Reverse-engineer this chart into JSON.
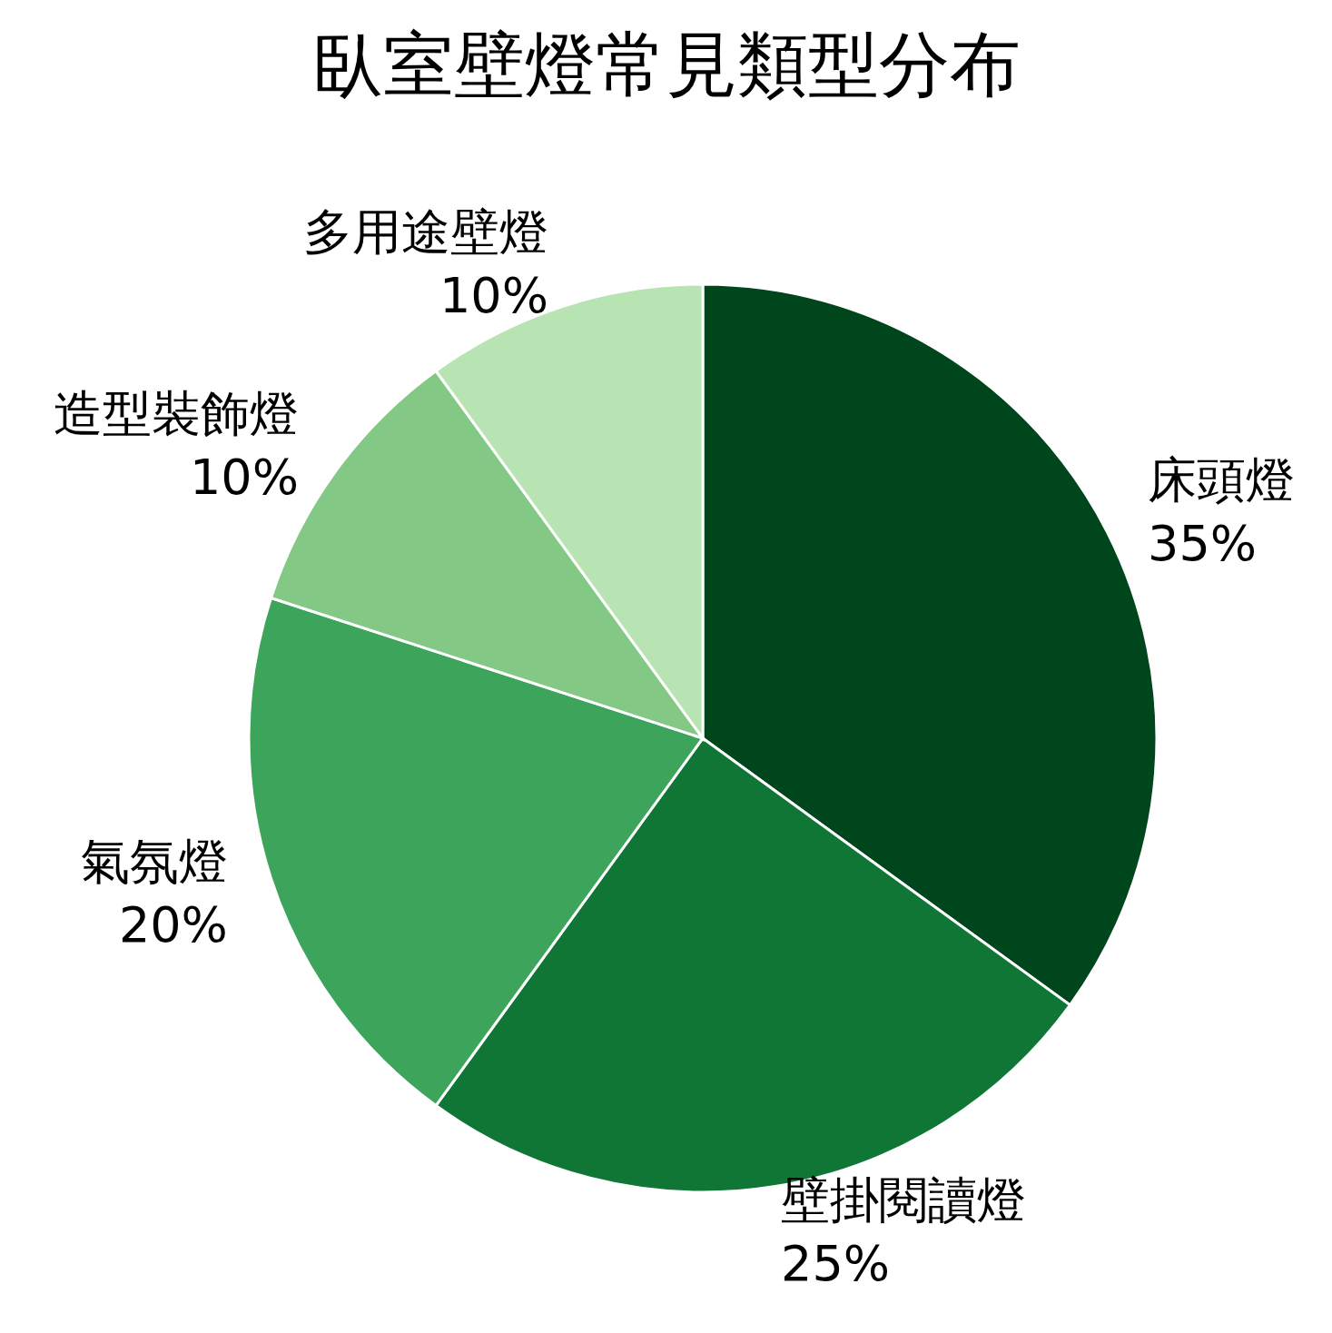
{
  "chart_data": {
    "type": "pie",
    "title": "臥室壁燈常見類型分布",
    "categories": [
      "床頭燈",
      "壁掛閱讀燈",
      "氣氛燈",
      "造型裝飾燈",
      "多用途壁燈"
    ],
    "values": [
      35,
      25,
      20,
      10,
      10
    ],
    "colors": [
      "#00461d",
      "#0f7636",
      "#3ca45b",
      "#83c884",
      "#b8e3b3"
    ],
    "value_labels": [
      "35%",
      "25%",
      "20%",
      "10%",
      "10%"
    ]
  }
}
